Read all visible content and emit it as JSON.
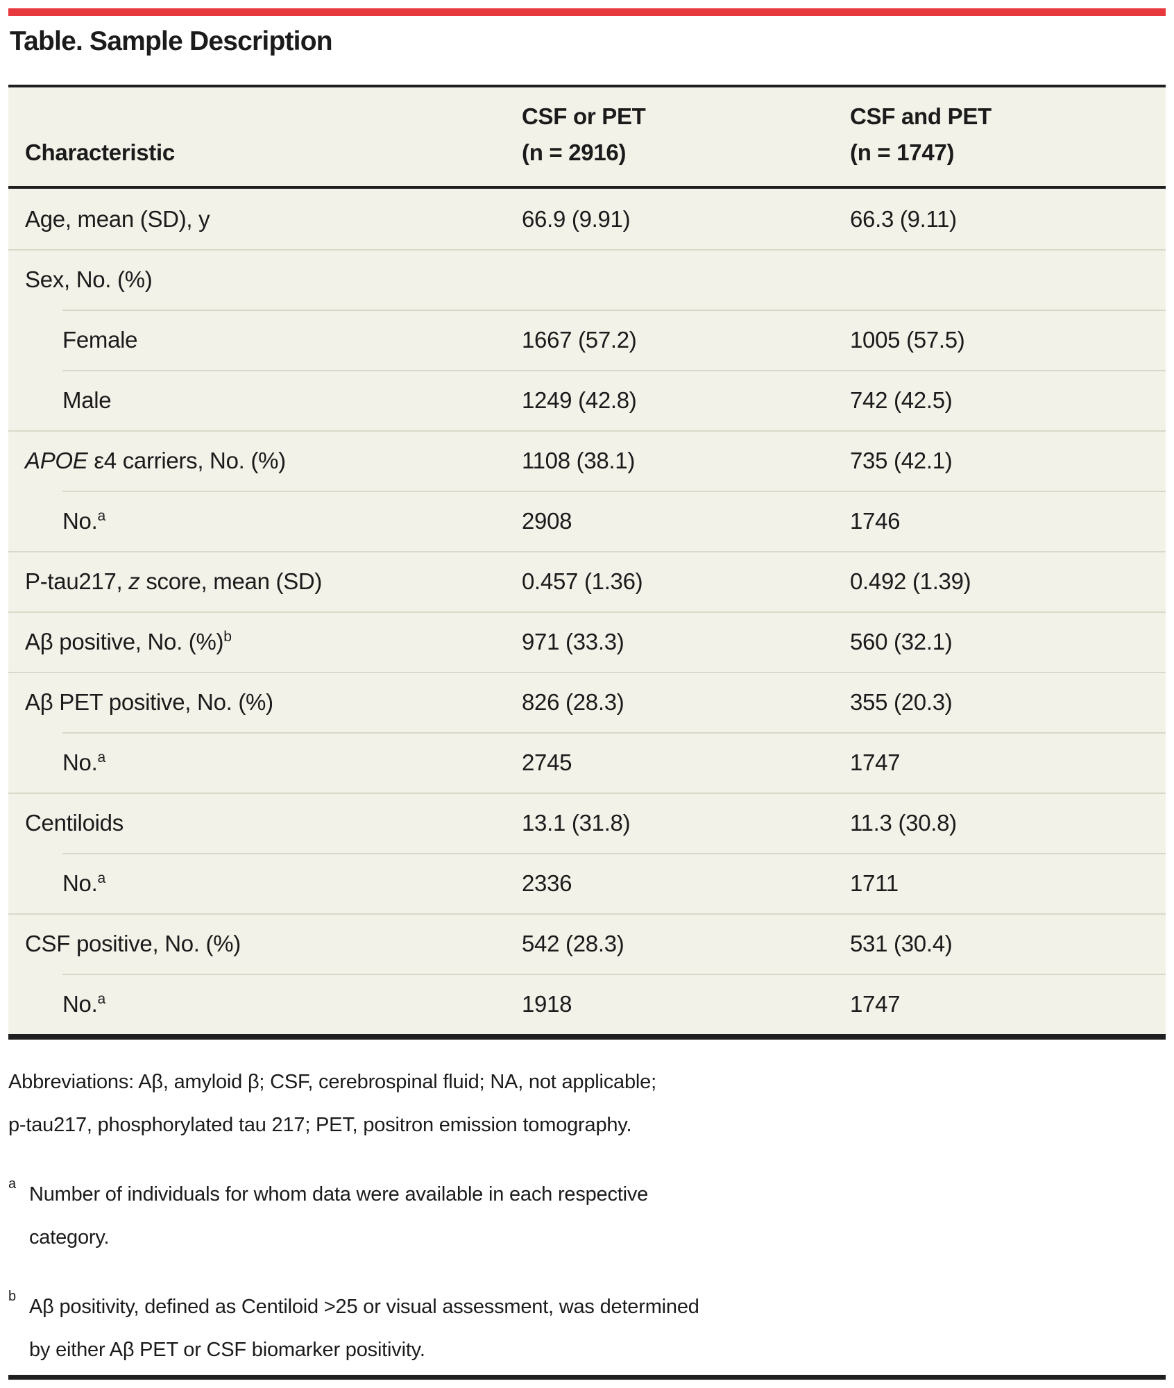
{
  "page": {
    "title": "Table. Sample Description"
  },
  "colors": {
    "accent_red": "#e7383e",
    "row_background": "#f3f2e9",
    "rule_black": "#1f1f1f",
    "row_separator": "#dbd8c9"
  },
  "table": {
    "header": {
      "characteristic": "Characteristic",
      "col2_line1": "CSF or PET",
      "col2_line2": "(n = 2916)",
      "col3_line1": "CSF and PET",
      "col3_line2": "(n = 1747)"
    },
    "rows": [
      {
        "label": "Age, mean (SD), y",
        "v1": "66.9 (9.91)",
        "v2": "66.3 (9.11)"
      },
      {
        "label": "Sex, No. (%)",
        "v1": "",
        "v2": ""
      },
      {
        "label": "Female",
        "v1": "1667 (57.2)",
        "v2": "1005 (57.5)"
      },
      {
        "label": "Male",
        "v1": "1249 (42.8)",
        "v2": "742 (42.5)"
      },
      {
        "em": "APOE",
        "label": " ε4 carriers, No. (%)",
        "v1": "1108 (38.1)",
        "v2": "735 (42.1)"
      },
      {
        "label": "No.",
        "sup": "a",
        "v1": "2908",
        "v2": "1746"
      },
      {
        "pre": "P-tau217, ",
        "em": "z",
        "label": " score, mean (SD)",
        "v1": "0.457 (1.36)",
        "v2": "0.492 (1.39)"
      },
      {
        "label": "Aβ positive, No. (%)",
        "sup": "b",
        "v1": "971 (33.3)",
        "v2": "560 (32.1)"
      },
      {
        "label": "Aβ PET positive, No. (%)",
        "v1": "826 (28.3)",
        "v2": "355 (20.3)"
      },
      {
        "label": "No.",
        "sup": "a",
        "v1": "2745",
        "v2": "1747"
      },
      {
        "label": "Centiloids",
        "v1": "13.1 (31.8)",
        "v2": "11.3 (30.8)"
      },
      {
        "label": "No.",
        "sup": "a",
        "v1": "2336",
        "v2": "1711"
      },
      {
        "label": "CSF positive, No. (%)",
        "v1": "542 (28.3)",
        "v2": "531 (30.4)"
      },
      {
        "label": "No.",
        "sup": "a",
        "v1": "1918",
        "v2": "1747"
      }
    ]
  },
  "footnotes": {
    "abbreviations": {
      "lines": [
        "Abbreviations: Aβ, amyloid β; CSF, cerebrospinal fluid; NA, not applicable;",
        "p-tau217, phosphorylated tau 217; PET, positron emission tomography."
      ]
    },
    "a": {
      "marker": "a",
      "lines": [
        "Number of individuals for whom data were available in each respective",
        "category."
      ]
    },
    "b": {
      "marker": "b",
      "lines": [
        "Aβ positivity, defined as Centiloid >25 or visual assessment, was determined",
        "by either Aβ PET or CSF biomarker positivity."
      ]
    }
  }
}
